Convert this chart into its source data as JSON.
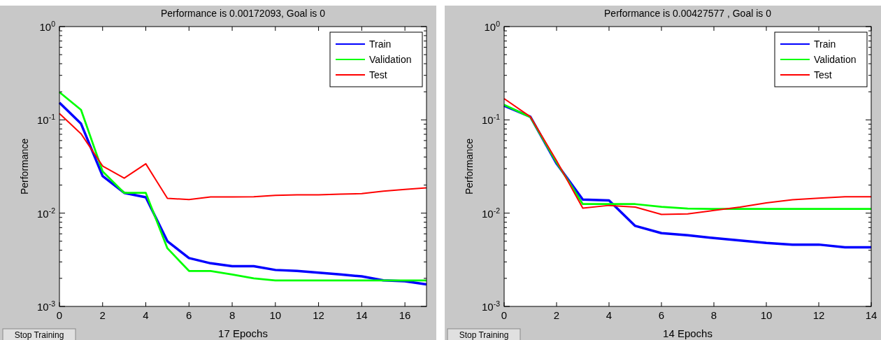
{
  "chart_data": [
    {
      "type": "line",
      "title": "Performance is 0.00172093, Goal is 0",
      "xlabel": "17 Epochs",
      "ylabel": "Performance",
      "log": "y",
      "legend": "top right",
      "grid": false,
      "line_style": "solid",
      "marker": "none",
      "annotations": [
        "Stop Training"
      ],
      "x": [
        0,
        1,
        2,
        3,
        4,
        5,
        6,
        7,
        8,
        9,
        10,
        11,
        12,
        13,
        14,
        15,
        16,
        17
      ],
      "xlim": [
        0,
        17
      ],
      "xticks": [
        0,
        2,
        4,
        6,
        8,
        10,
        12,
        14,
        16
      ],
      "ylim": [
        0.001,
        1
      ],
      "yticks": [
        {
          "value": 0.001,
          "label": "10$^{-3}$"
        },
        {
          "value": 0.01,
          "label": "10$^{-2}$"
        },
        {
          "value": 0.1,
          "label": "10$^{-1}$"
        },
        {
          "value": 1,
          "label": "10$^{0}$"
        }
      ],
      "series": [
        {
          "name": "Train",
          "color": "#0000ff",
          "values": [
            0.153,
            0.091,
            0.025,
            0.0165,
            0.0148,
            0.005,
            0.0033,
            0.0029,
            0.0027,
            0.0027,
            0.00246,
            0.0024,
            0.0023,
            0.0022,
            0.0021,
            0.0019,
            0.00186,
            0.00172
          ]
        },
        {
          "name": "Validation",
          "color": "#00ff00",
          "values": [
            0.198,
            0.128,
            0.028,
            0.0165,
            0.0165,
            0.0042,
            0.0024,
            0.0024,
            0.0022,
            0.002,
            0.0019,
            0.0019,
            0.0019,
            0.0019,
            0.0019,
            0.0019,
            0.0019,
            0.0019
          ]
        },
        {
          "name": "Test",
          "color": "#ff0000",
          "values": [
            0.117,
            0.071,
            0.032,
            0.0237,
            0.0338,
            0.0144,
            0.014,
            0.0149,
            0.0149,
            0.015,
            0.0155,
            0.0157,
            0.0157,
            0.016,
            0.0162,
            0.0172,
            0.018,
            0.0187
          ]
        }
      ]
    },
    {
      "type": "line",
      "title": "Performance is 0.00427577 , Goal is 0",
      "xlabel": "14 Epochs",
      "ylabel": "Performance",
      "log": "y",
      "legend": "top right",
      "grid": false,
      "line_style": "solid",
      "marker": "none",
      "annotations": [
        "Stop Training"
      ],
      "x": [
        0,
        1,
        2,
        3,
        4,
        5,
        6,
        7,
        8,
        9,
        10,
        11,
        12,
        13,
        14
      ],
      "xlim": [
        0,
        14
      ],
      "xticks": [
        0,
        2,
        4,
        6,
        8,
        10,
        12,
        14
      ],
      "ylim": [
        0.001,
        1
      ],
      "yticks": [
        {
          "value": 0.001,
          "label": "10$^{-3}$"
        },
        {
          "value": 0.01,
          "label": "10$^{-2}$"
        },
        {
          "value": 0.1,
          "label": "10$^{-1}$"
        },
        {
          "value": 1,
          "label": "10$^{0}$"
        }
      ],
      "series": [
        {
          "name": "Train",
          "color": "#0000ff",
          "values": [
            0.142,
            0.108,
            0.034,
            0.014,
            0.0137,
            0.0073,
            0.0061,
            0.0058,
            0.0054,
            0.0051,
            0.0048,
            0.0046,
            0.0046,
            0.0043,
            0.0043
          ]
        },
        {
          "name": "Validation",
          "color": "#00ff00",
          "values": [
            0.145,
            0.107,
            0.035,
            0.0125,
            0.0125,
            0.0125,
            0.0117,
            0.0112,
            0.0111,
            0.0111,
            0.0111,
            0.0111,
            0.0111,
            0.0111,
            0.0111
          ]
        },
        {
          "name": "Test",
          "color": "#ff0000",
          "values": [
            0.169,
            0.108,
            0.0365,
            0.0113,
            0.0121,
            0.0116,
            0.0097,
            0.0098,
            0.0107,
            0.0116,
            0.0129,
            0.0139,
            0.0145,
            0.015,
            0.015
          ]
        }
      ]
    }
  ]
}
